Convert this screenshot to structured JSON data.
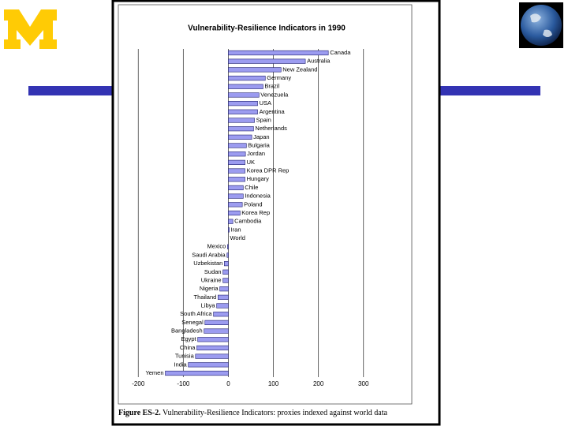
{
  "chart_data": {
    "type": "bar",
    "orientation": "horizontal",
    "title": "Vulnerability-Resilience Indicators in 1990",
    "categories": [
      "Canada",
      "Australia",
      "New Zealand",
      "Germany",
      "Brazil",
      "Venezuela",
      "USA",
      "Argentina",
      "Spain",
      "Netherlands",
      "Japan",
      "Bulgaria",
      "Jordan",
      "UK",
      "Korea DPR Rep",
      "Hungary",
      "Chile",
      "Indonesia",
      "Poland",
      "Korea Rep",
      "Cambodia",
      "Iran",
      "World",
      "Mexico",
      "Saudi Arabia",
      "Uzbekistan",
      "Sudan",
      "Ukraine",
      "Nigeria",
      "Thailand",
      "Libya",
      "South Africa",
      "Senegal",
      "Bangladesh",
      "Egypt",
      "China",
      "Tunisia",
      "India",
      "Yemen"
    ],
    "values": [
      222,
      171,
      117,
      82,
      77,
      68,
      65,
      65,
      58,
      56,
      52,
      40,
      38,
      37,
      37,
      37,
      33,
      33,
      31,
      26,
      10,
      2,
      0,
      -2,
      -3,
      -9,
      -12,
      -12,
      -19,
      -23,
      -26,
      -33,
      -52,
      -54,
      -68,
      -70,
      -73,
      -89,
      -140
    ],
    "color": "#9c9cf0",
    "xlim": [
      -225,
      325
    ],
    "xticks": [
      -200,
      -100,
      0,
      100,
      200,
      300
    ],
    "grid": true
  },
  "caption": {
    "label": "Figure ES-2.",
    "text": "Vulnerability-Resilience Indicators: proxies indexed against world data"
  }
}
